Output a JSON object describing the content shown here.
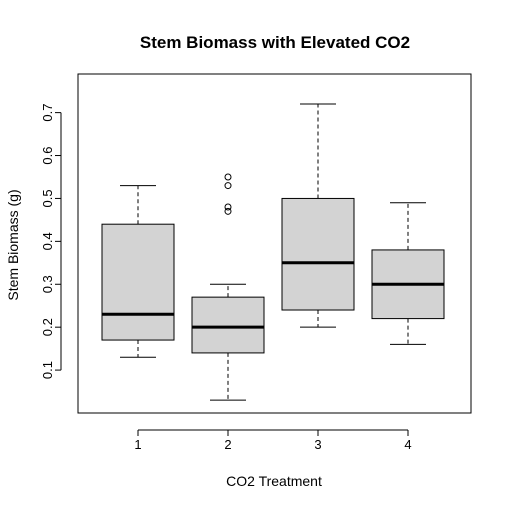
{
  "chart_data": {
    "type": "boxplot",
    "title": "Stem Biomass with Elevated CO2",
    "xlabel": "CO2 Treatment",
    "ylabel": "Stem Biomass (g)",
    "categories": [
      "1",
      "2",
      "3",
      "4"
    ],
    "yticks": [
      "0.1",
      "0.2",
      "0.3",
      "0.4",
      "0.5",
      "0.6",
      "0.7"
    ],
    "ylim": [
      0.0,
      0.79
    ],
    "grid": false,
    "box_fill": "#d3d3d3",
    "boxes": [
      {
        "category": "1",
        "whisker_low": 0.13,
        "q1": 0.17,
        "median": 0.23,
        "q3": 0.44,
        "whisker_high": 0.53,
        "outliers": []
      },
      {
        "category": "2",
        "whisker_low": 0.03,
        "q1": 0.14,
        "median": 0.2,
        "q3": 0.27,
        "whisker_high": 0.3,
        "outliers": [
          0.47,
          0.48,
          0.53,
          0.55
        ]
      },
      {
        "category": "3",
        "whisker_low": 0.2,
        "q1": 0.24,
        "median": 0.35,
        "q3": 0.5,
        "whisker_high": 0.72,
        "outliers": []
      },
      {
        "category": "4",
        "whisker_low": 0.16,
        "q1": 0.22,
        "median": 0.3,
        "q3": 0.38,
        "whisker_high": 0.49,
        "outliers": []
      }
    ]
  }
}
